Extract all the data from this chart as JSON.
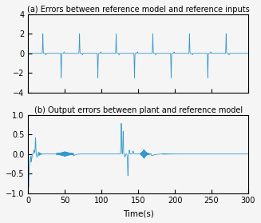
{
  "title_a": "(a) Errors between reference model and reference inputs",
  "title_b": "(b) Output errors between plant and reference model",
  "xlabel": "Time(s)",
  "xlim": [
    0,
    300
  ],
  "ylim_a": [
    -4,
    4
  ],
  "ylim_b": [
    -1,
    1
  ],
  "yticks_a": [
    -4,
    -2,
    0,
    2,
    4
  ],
  "yticks_b": [
    -1,
    -0.5,
    0,
    0.5,
    1
  ],
  "xticks": [
    0,
    50,
    100,
    150,
    200,
    250,
    300
  ],
  "line_color": "#3399cc",
  "bg_color": "#f5f5f5",
  "title_fontsize": 7.0,
  "label_fontsize": 7.5,
  "tick_fontsize": 7.0,
  "dt": 0.05,
  "T": 300
}
